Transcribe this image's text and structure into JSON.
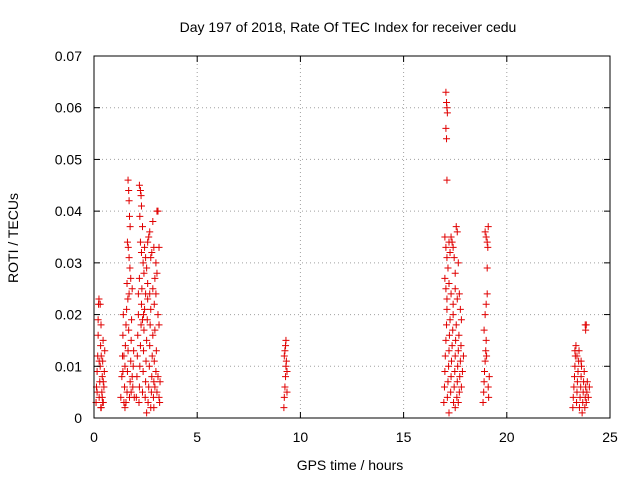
{
  "chart_data": {
    "type": "scatter",
    "title": "Day 197 of 2018, Rate Of TEC Index for receiver cedu",
    "xlabel": "GPS time / hours",
    "ylabel": "ROTI / TECUs",
    "xlim": [
      0,
      25
    ],
    "ylim": [
      0,
      0.07
    ],
    "xticks": [
      "0",
      "5",
      "10",
      "15",
      "20",
      "25"
    ],
    "yticks": [
      "0",
      "0.01",
      "0.02",
      "0.03",
      "0.04",
      "0.05",
      "0.06",
      "0.07"
    ],
    "grid": true,
    "marker": "plus",
    "color": "#e00000",
    "points": [
      [
        0.1,
        0.003
      ],
      [
        0.12,
        0.006
      ],
      [
        0.15,
        0.009
      ],
      [
        0.18,
        0.012
      ],
      [
        0.2,
        0.016
      ],
      [
        0.22,
        0.022
      ],
      [
        0.24,
        0.023
      ],
      [
        0.25,
        0.004
      ],
      [
        0.28,
        0.007
      ],
      [
        0.3,
        0.01
      ],
      [
        0.32,
        0.014
      ],
      [
        0.34,
        0.018
      ],
      [
        0.35,
        0.002
      ],
      [
        0.38,
        0.005
      ],
      [
        0.4,
        0.008
      ],
      [
        0.42,
        0.011
      ],
      [
        0.44,
        0.015
      ],
      [
        0.45,
        0.003
      ],
      [
        0.48,
        0.006
      ],
      [
        0.5,
        0.009
      ],
      [
        0.52,
        0.013
      ],
      [
        0.3,
        0.022
      ],
      [
        0.2,
        0.019
      ],
      [
        0.4,
        0.004
      ],
      [
        0.15,
        0.005
      ],
      [
        0.35,
        0.012
      ],
      [
        0.45,
        0.007
      ],
      [
        0.25,
        0.011
      ],
      [
        0.33,
        0.002
      ],
      [
        0.42,
        0.003
      ],
      [
        1.3,
        0.004
      ],
      [
        1.35,
        0.008
      ],
      [
        1.38,
        0.012
      ],
      [
        1.4,
        0.016
      ],
      [
        1.42,
        0.02
      ],
      [
        1.45,
        0.003
      ],
      [
        1.48,
        0.006
      ],
      [
        1.5,
        0.01
      ],
      [
        1.52,
        0.014
      ],
      [
        1.55,
        0.018
      ],
      [
        1.58,
        0.021
      ],
      [
        1.6,
        0.005
      ],
      [
        1.62,
        0.009
      ],
      [
        1.65,
        0.013
      ],
      [
        1.68,
        0.017
      ],
      [
        1.7,
        0.024
      ],
      [
        1.72,
        0.004
      ],
      [
        1.75,
        0.007
      ],
      [
        1.78,
        0.011
      ],
      [
        1.8,
        0.015
      ],
      [
        1.82,
        0.019
      ],
      [
        1.85,
        0.025
      ],
      [
        1.88,
        0.006
      ],
      [
        1.9,
        0.01
      ],
      [
        1.65,
        0.046
      ],
      [
        1.68,
        0.044
      ],
      [
        1.7,
        0.042
      ],
      [
        1.72,
        0.039
      ],
      [
        1.75,
        0.037
      ],
      [
        1.62,
        0.034
      ],
      [
        1.66,
        0.033
      ],
      [
        1.7,
        0.031
      ],
      [
        1.74,
        0.029
      ],
      [
        1.78,
        0.027
      ],
      [
        1.6,
        0.026
      ],
      [
        1.64,
        0.023
      ],
      [
        1.5,
        0.002
      ],
      [
        1.55,
        0.003
      ],
      [
        1.85,
        0.008
      ],
      [
        1.8,
        0.005
      ],
      [
        1.45,
        0.012
      ],
      [
        1.92,
        0.013
      ],
      [
        1.95,
        0.004
      ],
      [
        1.4,
        0.009
      ],
      [
        2.05,
        0.004
      ],
      [
        2.08,
        0.008
      ],
      [
        2.1,
        0.012
      ],
      [
        2.12,
        0.016
      ],
      [
        2.15,
        0.02
      ],
      [
        2.18,
        0.003
      ],
      [
        2.2,
        0.006
      ],
      [
        2.22,
        0.01
      ],
      [
        2.25,
        0.014
      ],
      [
        2.28,
        0.018
      ],
      [
        2.3,
        0.022
      ],
      [
        2.32,
        0.025
      ],
      [
        2.35,
        0.005
      ],
      [
        2.38,
        0.009
      ],
      [
        2.4,
        0.013
      ],
      [
        2.42,
        0.017
      ],
      [
        2.45,
        0.021
      ],
      [
        2.48,
        0.004
      ],
      [
        2.5,
        0.007
      ],
      [
        2.52,
        0.011
      ],
      [
        2.55,
        0.015
      ],
      [
        2.58,
        0.019
      ],
      [
        2.6,
        0.023
      ],
      [
        2.62,
        0.003
      ],
      [
        2.65,
        0.006
      ],
      [
        2.68,
        0.01
      ],
      [
        2.7,
        0.014
      ],
      [
        2.72,
        0.018
      ],
      [
        2.75,
        0.002
      ],
      [
        2.78,
        0.005
      ],
      [
        2.8,
        0.008
      ],
      [
        2.82,
        0.012
      ],
      [
        2.85,
        0.016
      ],
      [
        2.88,
        0.004
      ],
      [
        2.9,
        0.007
      ],
      [
        2.92,
        0.011
      ],
      [
        2.95,
        0.006
      ],
      [
        3.0,
        0.009
      ],
      [
        3.05,
        0.005
      ],
      [
        3.1,
        0.008
      ],
      [
        3.15,
        0.004
      ],
      [
        3.2,
        0.007
      ],
      [
        2.2,
        0.045
      ],
      [
        2.25,
        0.044
      ],
      [
        2.28,
        0.043
      ],
      [
        2.3,
        0.041
      ],
      [
        2.22,
        0.039
      ],
      [
        2.35,
        0.037
      ],
      [
        2.25,
        0.034
      ],
      [
        2.3,
        0.032
      ],
      [
        2.38,
        0.03
      ],
      [
        2.42,
        0.028
      ],
      [
        2.45,
        0.033
      ],
      [
        2.5,
        0.031
      ],
      [
        2.55,
        0.029
      ],
      [
        2.6,
        0.034
      ],
      [
        2.65,
        0.035
      ],
      [
        2.7,
        0.036
      ],
      [
        2.75,
        0.031
      ],
      [
        2.8,
        0.032
      ],
      [
        2.85,
        0.038
      ],
      [
        2.9,
        0.033
      ],
      [
        2.95,
        0.027
      ],
      [
        3.0,
        0.03
      ],
      [
        3.05,
        0.04
      ],
      [
        3.1,
        0.04
      ],
      [
        3.15,
        0.033
      ],
      [
        3.05,
        0.028
      ],
      [
        3.0,
        0.024
      ],
      [
        2.92,
        0.022
      ],
      [
        2.85,
        0.025
      ],
      [
        2.75,
        0.021
      ],
      [
        2.7,
        0.024
      ],
      [
        2.6,
        0.026
      ],
      [
        2.5,
        0.024
      ],
      [
        2.4,
        0.02
      ],
      [
        2.35,
        0.019
      ],
      [
        2.2,
        0.027
      ],
      [
        2.15,
        0.024
      ],
      [
        3.1,
        0.02
      ],
      [
        3.15,
        0.018
      ],
      [
        2.95,
        0.017
      ],
      [
        3.02,
        0.013
      ],
      [
        2.55,
        0.001
      ],
      [
        2.9,
        0.002
      ],
      [
        3.18,
        0.003
      ],
      [
        9.2,
        0.002
      ],
      [
        9.22,
        0.004
      ],
      [
        9.25,
        0.006
      ],
      [
        9.28,
        0.008
      ],
      [
        9.3,
        0.01
      ],
      [
        9.22,
        0.012
      ],
      [
        9.25,
        0.013
      ],
      [
        9.28,
        0.014
      ],
      [
        9.3,
        0.015
      ],
      [
        9.35,
        0.009
      ],
      [
        9.35,
        0.005
      ],
      [
        9.32,
        0.011
      ],
      [
        16.95,
        0.003
      ],
      [
        16.98,
        0.006
      ],
      [
        17.0,
        0.009
      ],
      [
        17.02,
        0.012
      ],
      [
        17.05,
        0.015
      ],
      [
        17.08,
        0.018
      ],
      [
        17.1,
        0.021
      ],
      [
        17.12,
        0.004
      ],
      [
        17.15,
        0.007
      ],
      [
        17.18,
        0.01
      ],
      [
        17.2,
        0.013
      ],
      [
        17.22,
        0.016
      ],
      [
        17.25,
        0.019
      ],
      [
        17.28,
        0.005
      ],
      [
        17.3,
        0.008
      ],
      [
        17.32,
        0.011
      ],
      [
        17.35,
        0.014
      ],
      [
        17.38,
        0.017
      ],
      [
        17.4,
        0.02
      ],
      [
        17.42,
        0.003
      ],
      [
        17.45,
        0.006
      ],
      [
        17.48,
        0.009
      ],
      [
        17.5,
        0.012
      ],
      [
        17.52,
        0.015
      ],
      [
        17.55,
        0.018
      ],
      [
        17.58,
        0.004
      ],
      [
        17.6,
        0.007
      ],
      [
        17.62,
        0.01
      ],
      [
        17.65,
        0.013
      ],
      [
        17.68,
        0.016
      ],
      [
        17.7,
        0.005
      ],
      [
        17.72,
        0.008
      ],
      [
        17.75,
        0.011
      ],
      [
        17.78,
        0.014
      ],
      [
        17.8,
        0.006
      ],
      [
        17.85,
        0.009
      ],
      [
        17.9,
        0.012
      ],
      [
        17.05,
        0.063
      ],
      [
        17.08,
        0.061
      ],
      [
        17.1,
        0.06
      ],
      [
        17.12,
        0.059
      ],
      [
        17.05,
        0.056
      ],
      [
        17.08,
        0.054
      ],
      [
        17.1,
        0.046
      ],
      [
        17.0,
        0.035
      ],
      [
        17.05,
        0.033
      ],
      [
        17.1,
        0.031
      ],
      [
        17.15,
        0.029
      ],
      [
        17.2,
        0.034
      ],
      [
        17.25,
        0.032
      ],
      [
        17.3,
        0.035
      ],
      [
        17.35,
        0.034
      ],
      [
        17.4,
        0.033
      ],
      [
        17.45,
        0.031
      ],
      [
        17.5,
        0.028
      ],
      [
        17.55,
        0.037
      ],
      [
        17.6,
        0.036
      ],
      [
        17.65,
        0.03
      ],
      [
        17.0,
        0.027
      ],
      [
        17.05,
        0.025
      ],
      [
        17.1,
        0.023
      ],
      [
        17.2,
        0.026
      ],
      [
        17.3,
        0.024
      ],
      [
        17.4,
        0.022
      ],
      [
        17.5,
        0.025
      ],
      [
        17.6,
        0.023
      ],
      [
        17.7,
        0.024
      ],
      [
        17.75,
        0.021
      ],
      [
        17.8,
        0.019
      ],
      [
        17.2,
        0.001
      ],
      [
        17.5,
        0.002
      ],
      [
        17.65,
        0.003
      ],
      [
        18.85,
        0.003
      ],
      [
        18.88,
        0.005
      ],
      [
        18.9,
        0.007
      ],
      [
        18.92,
        0.009
      ],
      [
        18.95,
        0.011
      ],
      [
        18.98,
        0.013
      ],
      [
        19.0,
        0.015
      ],
      [
        18.9,
        0.017
      ],
      [
        18.95,
        0.02
      ],
      [
        19.0,
        0.022
      ],
      [
        19.05,
        0.024
      ],
      [
        19.1,
        0.006
      ],
      [
        19.12,
        0.004
      ],
      [
        19.15,
        0.008
      ],
      [
        19.05,
        0.029
      ],
      [
        18.95,
        0.036
      ],
      [
        19.0,
        0.035
      ],
      [
        19.05,
        0.034
      ],
      [
        19.1,
        0.037
      ],
      [
        19.08,
        0.033
      ],
      [
        19.02,
        0.012
      ],
      [
        23.2,
        0.002
      ],
      [
        23.22,
        0.004
      ],
      [
        23.25,
        0.006
      ],
      [
        23.28,
        0.008
      ],
      [
        23.3,
        0.01
      ],
      [
        23.32,
        0.012
      ],
      [
        23.35,
        0.014
      ],
      [
        23.38,
        0.003
      ],
      [
        23.4,
        0.005
      ],
      [
        23.42,
        0.007
      ],
      [
        23.45,
        0.009
      ],
      [
        23.48,
        0.011
      ],
      [
        23.5,
        0.013
      ],
      [
        23.52,
        0.002
      ],
      [
        23.55,
        0.004
      ],
      [
        23.58,
        0.006
      ],
      [
        23.6,
        0.008
      ],
      [
        23.62,
        0.01
      ],
      [
        23.65,
        0.001
      ],
      [
        23.68,
        0.003
      ],
      [
        23.7,
        0.005
      ],
      [
        23.72,
        0.007
      ],
      [
        23.75,
        0.009
      ],
      [
        23.78,
        0.002
      ],
      [
        23.8,
        0.004
      ],
      [
        23.82,
        0.006
      ],
      [
        23.85,
        0.003
      ],
      [
        23.88,
        0.005
      ],
      [
        23.9,
        0.007
      ],
      [
        23.95,
        0.004
      ],
      [
        24.0,
        0.006
      ],
      [
        23.8,
        0.018
      ],
      [
        23.82,
        0.017
      ],
      [
        23.85,
        0.018
      ],
      [
        23.6,
        0.011
      ],
      [
        23.4,
        0.012
      ],
      [
        23.3,
        0.013
      ]
    ]
  }
}
